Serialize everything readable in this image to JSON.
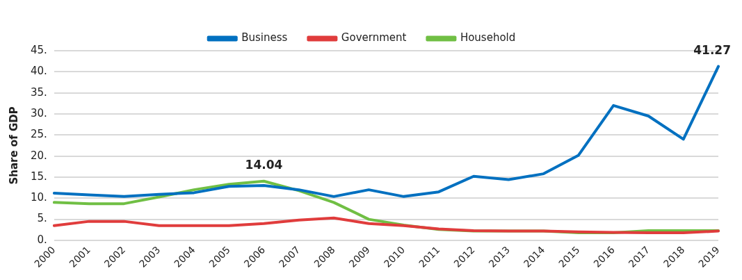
{
  "chart_data": {
    "type": "line",
    "ylabel": "Share of GDP",
    "categories": [
      "2000",
      "2001",
      "2002",
      "2003",
      "2004",
      "2005",
      "2006",
      "2007",
      "2008",
      "2009",
      "2010",
      "2011",
      "2012",
      "2013",
      "2014",
      "2015",
      "2016",
      "2017",
      "2018",
      "2019"
    ],
    "series": [
      {
        "name": "Business",
        "color": "#0070c0",
        "values": [
          11.2,
          10.8,
          10.4,
          10.9,
          11.3,
          12.8,
          13.0,
          12.0,
          10.4,
          12.0,
          10.4,
          11.5,
          15.2,
          14.4,
          15.8,
          20.2,
          32.0,
          29.5,
          24.0,
          41.27
        ]
      },
      {
        "name": "Government",
        "color": "#e03c3c",
        "values": [
          3.5,
          4.5,
          4.5,
          3.5,
          3.5,
          3.5,
          4.0,
          4.8,
          5.3,
          4.0,
          3.5,
          2.7,
          2.3,
          2.2,
          2.2,
          2.0,
          1.9,
          1.8,
          1.8,
          2.2
        ]
      },
      {
        "name": "Household",
        "color": "#70bf44",
        "values": [
          9.0,
          8.7,
          8.7,
          10.3,
          12.0,
          13.3,
          14.04,
          11.8,
          9.0,
          5.0,
          3.6,
          2.6,
          2.2,
          2.2,
          2.2,
          1.8,
          1.8,
          2.3,
          2.3,
          2.3
        ]
      }
    ],
    "ylim": [
      0,
      45
    ],
    "yticks": [
      {
        "value": 0,
        "label": "0."
      },
      {
        "value": 5,
        "label": "5."
      },
      {
        "value": 10,
        "label": "10."
      },
      {
        "value": 15,
        "label": "15."
      },
      {
        "value": 20,
        "label": "20."
      },
      {
        "value": 25,
        "label": "25."
      },
      {
        "value": 30,
        "label": "30."
      },
      {
        "value": 35,
        "label": "35."
      },
      {
        "value": 40,
        "label": "40."
      },
      {
        "value": 45,
        "label": "45."
      }
    ],
    "annotations": [
      {
        "text": "14.04",
        "x": "2006",
        "y": 14.04
      },
      {
        "text": "41.27",
        "x": "2019",
        "y": 41.27
      }
    ],
    "grid": "y",
    "legend": "top",
    "marker": "none",
    "line_style": "solid"
  }
}
